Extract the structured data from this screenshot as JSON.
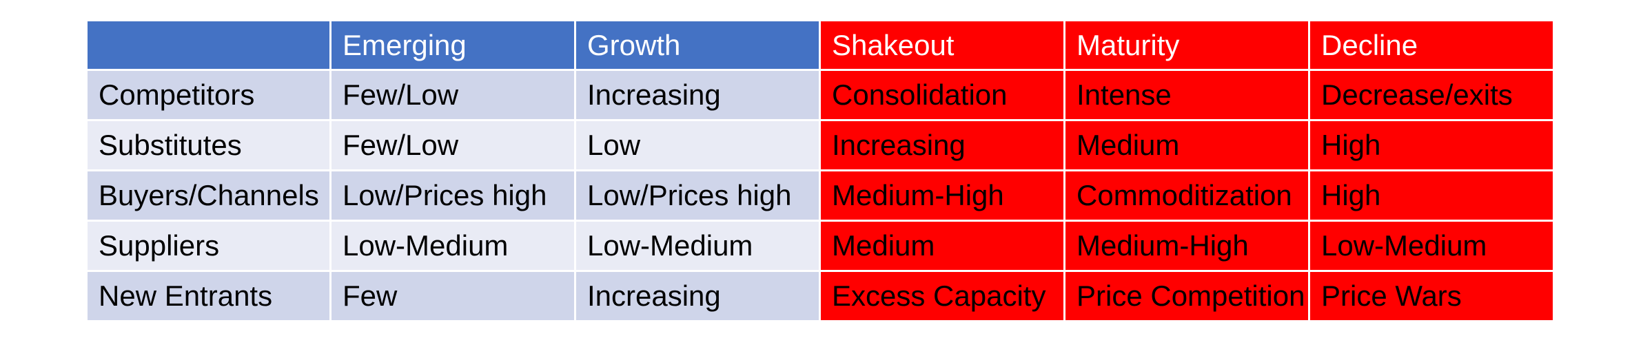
{
  "table": {
    "header": {
      "corner": "",
      "stages": [
        "Emerging",
        "Growth",
        "Shakeout",
        "Maturity",
        "Decline"
      ]
    },
    "rows": [
      {
        "label": "Competitors",
        "cells": [
          "Few/Low",
          "Increasing",
          "Consolidation",
          "Intense",
          "Decrease/exits"
        ]
      },
      {
        "label": "Substitutes",
        "cells": [
          "Few/Low",
          "Low",
          "Increasing",
          "Medium",
          "High"
        ]
      },
      {
        "label": "Buyers/Channels",
        "cells": [
          "Low/Prices high",
          "Low/Prices high",
          "Medium-High",
          "Commoditization",
          "High"
        ]
      },
      {
        "label": "Suppliers",
        "cells": [
          "Low-Medium",
          "Low-Medium",
          "Medium",
          "Medium-High",
          "Low-Medium"
        ]
      },
      {
        "label": "New Entrants",
        "cells": [
          "Few",
          "Increasing",
          "Excess Capacity",
          "Price Competition",
          "Price Wars"
        ]
      }
    ]
  },
  "colors": {
    "header_blue": "#4472c4",
    "highlight_red": "#ff0000",
    "band_dark": "#cfd5ea",
    "band_light": "#e9ebf5",
    "header_text": "#ffffff",
    "body_text": "#000000"
  }
}
